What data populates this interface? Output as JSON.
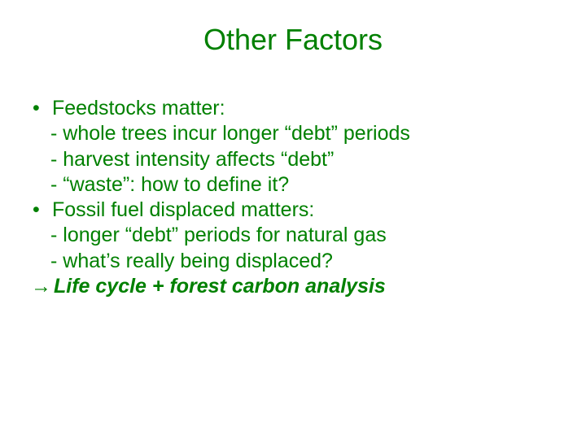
{
  "slide": {
    "title": "Other Factors",
    "title_color": "#008000",
    "text_color": "#008000",
    "background_color": "#ffffff",
    "title_fontsize": 36,
    "body_fontsize": 25,
    "bullets": [
      {
        "text": "Feedstocks matter:",
        "subs": [
          "- whole trees incur longer “debt” periods",
          "- harvest intensity affects “debt”",
          "- “waste”: how to define it?"
        ]
      },
      {
        "text": "Fossil fuel displaced matters:",
        "subs": [
          "- longer “debt” periods for natural gas",
          "- what’s really being displaced?"
        ]
      }
    ],
    "conclusion": {
      "arrow": "→",
      "text": "Life cycle + forest carbon analysis"
    }
  }
}
